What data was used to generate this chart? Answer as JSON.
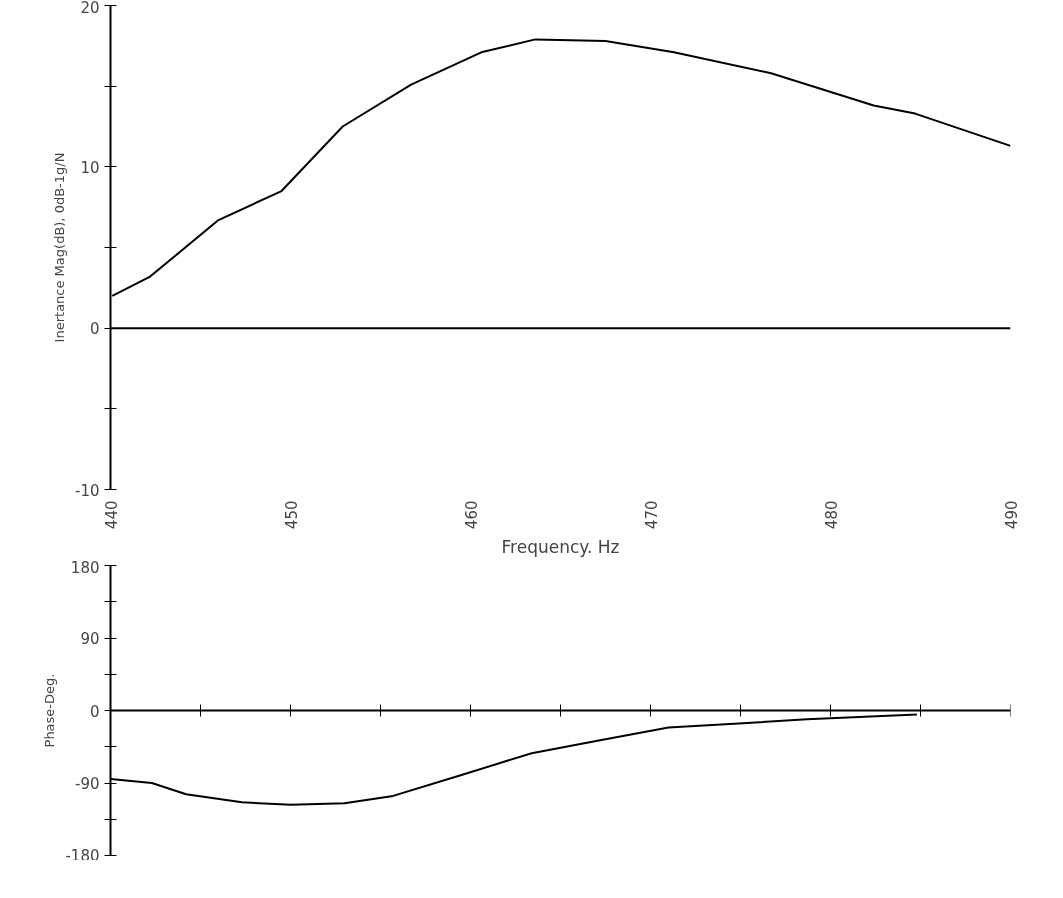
{
  "chart_data": [
    {
      "type": "line",
      "xlabel": "Frequency. Hz",
      "ylabel": "Inertance Mag(dB), 0dB-1g/N",
      "xlim": [
        440,
        490
      ],
      "ylim": [
        -10,
        20
      ],
      "xticks": [
        440,
        450,
        460,
        470,
        480,
        490
      ],
      "yticks": [
        -10,
        {
          "value": -5,
          "label": null
        },
        0,
        {
          "value": 5,
          "label": null
        },
        10,
        {
          "value": 15,
          "label": null
        },
        20
      ],
      "grid": false,
      "ref_lines": [
        {
          "axis": "y",
          "value": 0,
          "color": "#000000"
        }
      ],
      "series": [
        {
          "color": "#000000",
          "x": [
            440.1,
            442.2,
            446.0,
            449.5,
            452.9,
            456.7,
            460.6,
            463.6,
            467.5,
            471.3,
            476.7,
            482.4,
            484.7,
            490
          ],
          "values": [
            2.0,
            3.2,
            6.7,
            8.5,
            12.5,
            15.1,
            17.1,
            17.9,
            17.8,
            17.1,
            15.8,
            13.8,
            13.3,
            11.3
          ]
        }
      ]
    },
    {
      "type": "line",
      "ylabel": "Phase-Deg.",
      "xlim": [
        440,
        490
      ],
      "ylim": [
        -180,
        180
      ],
      "tick_labels": "y",
      "xticks": [
        {
          "value": 445,
          "label": null
        },
        {
          "value": 450,
          "label": null
        },
        {
          "value": 455,
          "label": null
        },
        {
          "value": 460,
          "label": null
        },
        {
          "value": 465,
          "label": null
        },
        {
          "value": 470,
          "label": null
        },
        {
          "value": 475,
          "label": null
        },
        {
          "value": 480,
          "label": null
        },
        {
          "value": 485,
          "label": null
        },
        {
          "value": 490,
          "label": null
        }
      ],
      "yticks": [
        -180,
        {
          "value": -135,
          "label": null
        },
        -90,
        {
          "value": -45,
          "label": null
        },
        0,
        {
          "value": 45,
          "label": null
        },
        90,
        {
          "value": 135,
          "label": null
        },
        180
      ],
      "grid": false,
      "ref_lines": [
        {
          "axis": "y",
          "value": 0,
          "color": "#000000"
        }
      ],
      "series": [
        {
          "color": "#000000",
          "x": [
            440,
            442.3,
            444.2,
            447.3,
            450,
            453,
            455.7,
            459.5,
            463.4,
            467.2,
            471,
            474.9,
            478.7,
            484.8
          ],
          "values": [
            -85,
            -90,
            -104,
            -114,
            -117,
            -115,
            -106,
            -80,
            -53,
            -37,
            -21,
            -16,
            -11,
            -5
          ]
        }
      ]
    }
  ]
}
